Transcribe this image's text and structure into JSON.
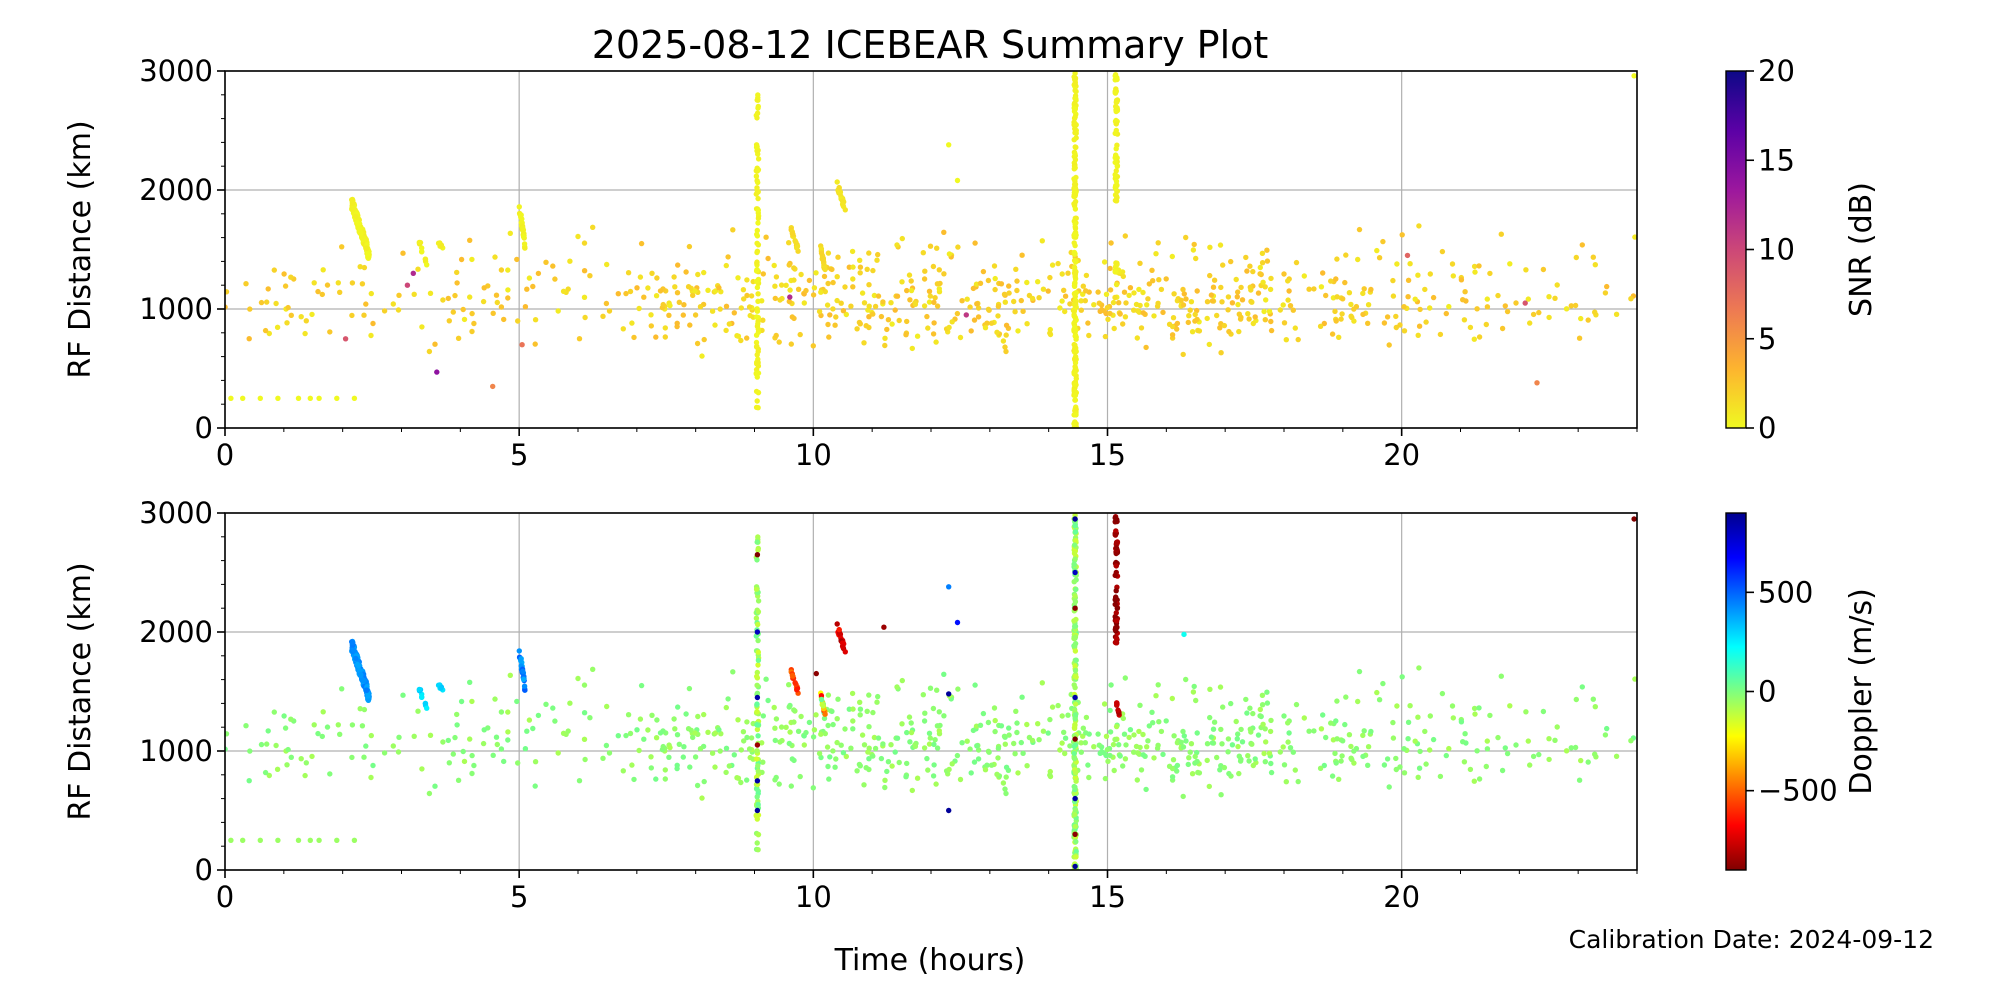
{
  "title": "2025-08-12 ICEBEAR Summary Plot",
  "calibration_note": "Calibration Date: 2024-09-12",
  "chart_data": [
    {
      "type": "scatter",
      "name": "snr-panel",
      "xlabel": "",
      "ylabel": "RF Distance (km)",
      "xlim": [
        0,
        24
      ],
      "ylim": [
        0,
        3000
      ],
      "xticks": [
        0,
        5,
        10,
        15,
        20
      ],
      "yticks": [
        0,
        1000,
        2000,
        3000
      ],
      "xtick_labels": [
        "0",
        "5",
        "10",
        "15",
        "20"
      ],
      "ytick_labels": [
        "0",
        "1000",
        "2000",
        "3000"
      ],
      "grid": true,
      "colorbar": {
        "label": "SNR (dB)",
        "range": [
          0,
          20
        ],
        "ticks": [
          0,
          5,
          10,
          15,
          20
        ],
        "tick_labels": [
          "0",
          "5",
          "10",
          "15",
          "20"
        ],
        "colormap": "plasma_r",
        "stops": [
          "#f0f921",
          "#fdb42f",
          "#ed7953",
          "#cc4778",
          "#9c179e",
          "#5c01a6",
          "#0d0887"
        ]
      },
      "clusters": [
        {
          "x": [
            2.15,
            2.45
          ],
          "y": [
            1400,
            1950
          ],
          "n": 160,
          "c": [
            0,
            0.6
          ]
        },
        {
          "x": [
            3.3,
            3.45
          ],
          "y": [
            1300,
            1600
          ],
          "n": 10,
          "c": [
            0,
            1
          ]
        },
        {
          "x": [
            3.6,
            3.75
          ],
          "y": [
            1450,
            1600
          ],
          "n": 6,
          "c": [
            0,
            1
          ]
        },
        {
          "x": [
            5.0,
            5.1
          ],
          "y": [
            1500,
            1900
          ],
          "n": 30,
          "c": [
            0,
            0.6
          ]
        },
        {
          "x": [
            9.62,
            9.75
          ],
          "y": [
            1450,
            1700
          ],
          "n": 14,
          "c": [
            1,
            2
          ]
        },
        {
          "x": [
            10.1,
            10.2
          ],
          "y": [
            1300,
            1600
          ],
          "n": 18,
          "c": [
            1,
            2
          ]
        },
        {
          "x": [
            10.4,
            10.55
          ],
          "y": [
            1800,
            2080
          ],
          "n": 25,
          "c": [
            0.5,
            1.5
          ]
        },
        {
          "x": [
            12.3,
            12.3
          ],
          "y": [
            2380,
            2380
          ],
          "n": 1,
          "c": [
            0,
            0
          ]
        },
        {
          "x": [
            12.45,
            12.45
          ],
          "y": [
            2080,
            2080
          ],
          "n": 1,
          "c": [
            0,
            0
          ]
        },
        {
          "x": [
            15.15,
            15.2
          ],
          "y": [
            1300,
            1400
          ],
          "n": 8,
          "c": [
            0,
            1
          ]
        }
      ],
      "streaks": [
        {
          "x": 9.05,
          "y": [
            150,
            2800
          ],
          "n": 90,
          "c": [
            0,
            0.5
          ]
        },
        {
          "x": 14.45,
          "y": [
            0,
            3000
          ],
          "n": 220,
          "c": [
            0,
            0.5
          ]
        },
        {
          "x": 15.15,
          "y": [
            1900,
            3000
          ],
          "n": 60,
          "c": [
            0,
            0.5
          ]
        },
        {
          "x": 15.15,
          "y": [
            1300,
            1400
          ],
          "n": 10,
          "c": [
            0,
            0.5
          ]
        }
      ],
      "background": {
        "x": [
          0,
          24
        ],
        "y": [
          200,
          2000
        ],
        "n": 1400,
        "c": [
          0.5,
          3
        ]
      },
      "points": [
        {
          "x": 0.1,
          "y": 250,
          "c": 0
        },
        {
          "x": 0.3,
          "y": 250,
          "c": 0
        },
        {
          "x": 0.6,
          "y": 250,
          "c": 0
        },
        {
          "x": 0.9,
          "y": 250,
          "c": 0
        },
        {
          "x": 1.25,
          "y": 250,
          "c": 0
        },
        {
          "x": 1.45,
          "y": 250,
          "c": 0
        },
        {
          "x": 1.6,
          "y": 250,
          "c": 0
        },
        {
          "x": 1.9,
          "y": 250,
          "c": 0
        },
        {
          "x": 2.2,
          "y": 250,
          "c": 0
        },
        {
          "x": 3.1,
          "y": 1200,
          "c": 10
        },
        {
          "x": 3.2,
          "y": 1300,
          "c": 12
        },
        {
          "x": 3.6,
          "y": 470,
          "c": 14
        },
        {
          "x": 2.05,
          "y": 750,
          "c": 9
        },
        {
          "x": 4.55,
          "y": 350,
          "c": 6
        },
        {
          "x": 5.05,
          "y": 700,
          "c": 7
        },
        {
          "x": 9.6,
          "y": 1100,
          "c": 12
        },
        {
          "x": 12.6,
          "y": 950,
          "c": 11
        },
        {
          "x": 20.1,
          "y": 1450,
          "c": 8
        },
        {
          "x": 22.1,
          "y": 1050,
          "c": 9
        },
        {
          "x": 22.3,
          "y": 380,
          "c": 6
        },
        {
          "x": 23.95,
          "y": 2960,
          "c": 0
        }
      ]
    },
    {
      "type": "scatter",
      "name": "doppler-panel",
      "xlabel": "Time (hours)",
      "ylabel": "RF Distance (km)",
      "xlim": [
        0,
        24
      ],
      "ylim": [
        0,
        3000
      ],
      "xticks": [
        0,
        5,
        10,
        15,
        20
      ],
      "yticks": [
        0,
        1000,
        2000,
        3000
      ],
      "xtick_labels": [
        "0",
        "5",
        "10",
        "15",
        "20"
      ],
      "ytick_labels": [
        "0",
        "1000",
        "2000",
        "3000"
      ],
      "grid": true,
      "colorbar": {
        "label": "Doppler (m/s)",
        "range": [
          -900,
          900
        ],
        "ticks": [
          -500,
          0,
          500
        ],
        "tick_labels": [
          "−500",
          "0",
          "500"
        ],
        "colormap": "jet_r",
        "stops": [
          "#800000",
          "#ff0000",
          "#ff7f00",
          "#ffff00",
          "#7fff7f",
          "#00ffff",
          "#007fff",
          "#0000ff",
          "#00008f"
        ]
      },
      "clusters": [
        {
          "x": [
            2.15,
            2.45
          ],
          "y": [
            1400,
            1950
          ],
          "n": 160,
          "c": [
            380,
            460
          ]
        },
        {
          "x": [
            3.3,
            3.45
          ],
          "y": [
            1300,
            1550
          ],
          "n": 10,
          "c": [
            250,
            350
          ]
        },
        {
          "x": [
            3.6,
            3.75
          ],
          "y": [
            1450,
            1600
          ],
          "n": 6,
          "c": [
            250,
            350
          ]
        },
        {
          "x": [
            5.0,
            5.1
          ],
          "y": [
            1500,
            1880
          ],
          "n": 30,
          "c": [
            350,
            520
          ]
        },
        {
          "x": [
            9.62,
            9.75
          ],
          "y": [
            1450,
            1700
          ],
          "n": 14,
          "c": [
            -650,
            -450
          ]
        },
        {
          "x": [
            10.1,
            10.2
          ],
          "y": [
            1280,
            1550
          ],
          "n": 18,
          "c": [
            -700,
            200
          ]
        },
        {
          "x": [
            10.4,
            10.55
          ],
          "y": [
            1800,
            2080
          ],
          "n": 25,
          "c": [
            -850,
            -600
          ]
        },
        {
          "x": [
            12.3,
            12.3
          ],
          "y": [
            2380,
            2380
          ],
          "n": 1,
          "c": [
            450,
            450
          ]
        },
        {
          "x": [
            12.45,
            12.45
          ],
          "y": [
            2080,
            2080
          ],
          "n": 1,
          "c": [
            650,
            650
          ]
        },
        {
          "x": [
            15.15,
            15.2
          ],
          "y": [
            1300,
            1420
          ],
          "n": 10,
          "c": [
            -900,
            -750
          ]
        }
      ],
      "streaks": [
        {
          "x": 9.05,
          "y": [
            150,
            2800
          ],
          "n": 90,
          "c": [
            -150,
            50
          ]
        },
        {
          "x": 14.45,
          "y": [
            0,
            3000
          ],
          "n": 220,
          "c": [
            -150,
            50
          ]
        },
        {
          "x": 15.15,
          "y": [
            1900,
            3000
          ],
          "n": 60,
          "c": [
            -900,
            -800
          ]
        }
      ],
      "background": {
        "x": [
          0,
          24
        ],
        "y": [
          200,
          2000
        ],
        "n": 1400,
        "c": [
          -80,
          20
        ]
      },
      "points": [
        {
          "x": 0.1,
          "y": 250,
          "c": -50
        },
        {
          "x": 0.3,
          "y": 250,
          "c": -50
        },
        {
          "x": 0.6,
          "y": 250,
          "c": -50
        },
        {
          "x": 0.9,
          "y": 250,
          "c": -50
        },
        {
          "x": 1.25,
          "y": 250,
          "c": -50
        },
        {
          "x": 1.45,
          "y": 250,
          "c": -50
        },
        {
          "x": 1.6,
          "y": 250,
          "c": -50
        },
        {
          "x": 1.9,
          "y": 250,
          "c": -50
        },
        {
          "x": 2.2,
          "y": 250,
          "c": -50
        },
        {
          "x": 9.05,
          "y": 2650,
          "c": -900
        },
        {
          "x": 9.05,
          "y": 2000,
          "c": 800
        },
        {
          "x": 9.05,
          "y": 1450,
          "c": 850
        },
        {
          "x": 9.05,
          "y": 1050,
          "c": -850
        },
        {
          "x": 9.05,
          "y": 750,
          "c": 850
        },
        {
          "x": 9.05,
          "y": 500,
          "c": 880
        },
        {
          "x": 10.05,
          "y": 1650,
          "c": -880
        },
        {
          "x": 11.2,
          "y": 2040,
          "c": -850
        },
        {
          "x": 12.3,
          "y": 1480,
          "c": 880
        },
        {
          "x": 12.3,
          "y": 500,
          "c": 880
        },
        {
          "x": 14.45,
          "y": 2950,
          "c": 880
        },
        {
          "x": 14.45,
          "y": 2500,
          "c": 800
        },
        {
          "x": 14.45,
          "y": 2200,
          "c": -880
        },
        {
          "x": 14.45,
          "y": 1450,
          "c": 850
        },
        {
          "x": 14.45,
          "y": 1100,
          "c": -900
        },
        {
          "x": 14.45,
          "y": 600,
          "c": 850
        },
        {
          "x": 14.45,
          "y": 300,
          "c": -880
        },
        {
          "x": 14.45,
          "y": 30,
          "c": 880
        },
        {
          "x": 16.3,
          "y": 1980,
          "c": 200
        },
        {
          "x": 23.95,
          "y": 2950,
          "c": -900
        }
      ]
    }
  ]
}
